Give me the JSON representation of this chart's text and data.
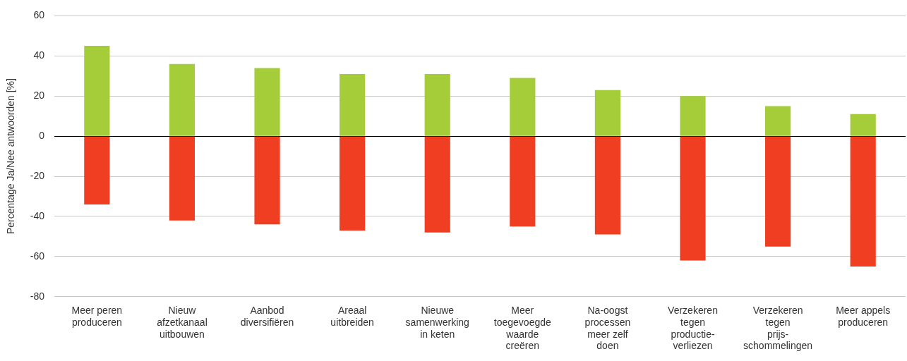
{
  "chart_data": {
    "type": "bar",
    "ylabel": "Percentage Ja/Nee antwoorden [%]",
    "categories": [
      "Meer peren\nproduceren",
      "Nieuw\nafzetkanaal\nuitbouwen",
      "Aanbod\ndiversifiëren",
      "Areaal\nuitbreiden",
      "Nieuwe\nsamenwerking\nin keten",
      "Meer\ntoegevoegde\nwaarde\ncreëren",
      "Na-oogst\nprocessen\nmeer zelf\ndoen",
      "Verzekeren\ntegen\nproductie-\nverliezen",
      "Verzekeren\ntegen\nprijs-\nschommelingen",
      "Meer appels\nproduceren"
    ],
    "series": [
      {
        "color": "#a5cd39",
        "values": [
          45,
          36,
          34,
          31,
          31,
          29,
          23,
          20,
          15,
          11
        ]
      },
      {
        "color": "#f03e23",
        "values": [
          -34,
          -42,
          -44,
          -47,
          -48,
          -45,
          -49,
          -62,
          -55,
          -65
        ]
      }
    ],
    "stacked": true,
    "ylim": [
      -80,
      60
    ],
    "yticks": [
      -80,
      -60,
      -40,
      -20,
      0,
      20,
      40,
      60
    ],
    "grid": "y",
    "legend": false
  }
}
